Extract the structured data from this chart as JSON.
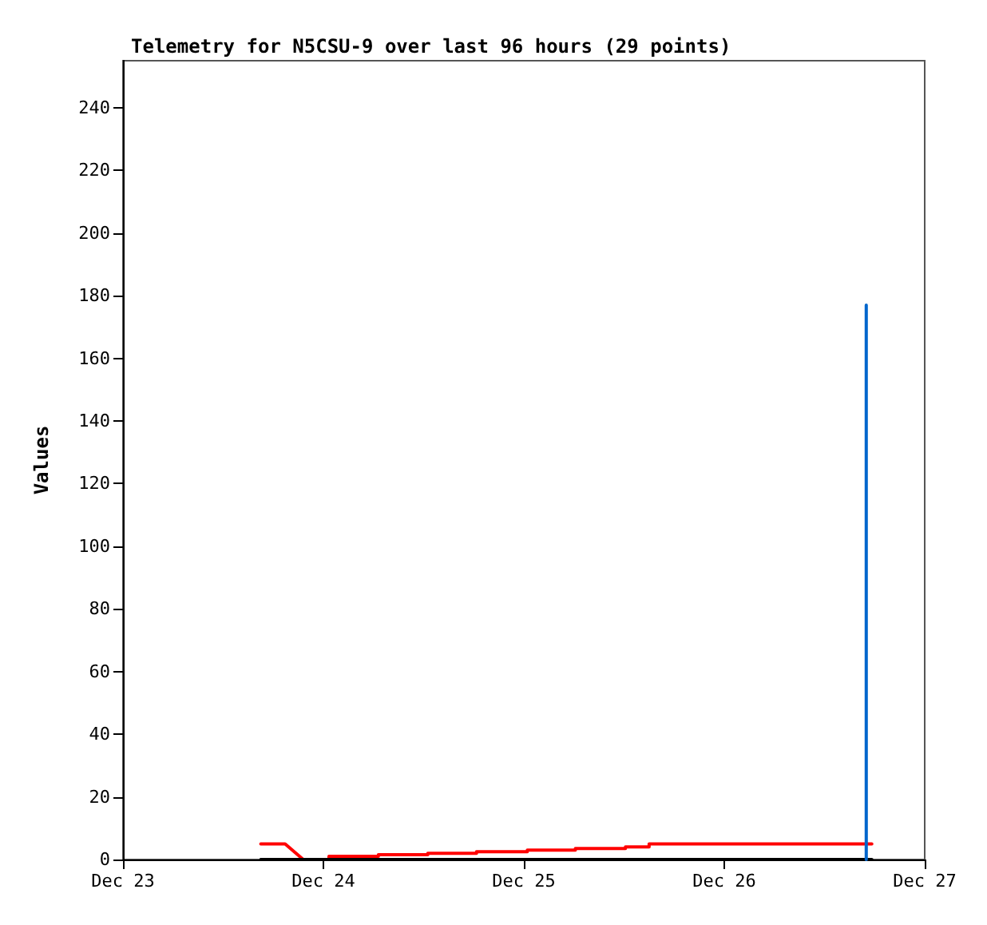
{
  "chart_data": {
    "type": "line",
    "title": "Telemetry for N5CSU-9 over last 96 hours (29 points)",
    "ylabel": "Values",
    "xlim": [
      "--12-23",
      "--12-27"
    ],
    "xticks": [
      {
        "value": "--12-23",
        "label": "Dec 23"
      },
      {
        "value": "--12-24",
        "label": "Dec 24"
      },
      {
        "value": "--12-25",
        "label": "Dec 25"
      },
      {
        "value": "--12-26",
        "label": "Dec 26"
      },
      {
        "value": "--12-27",
        "label": "Dec 27"
      }
    ],
    "ylim": [
      0,
      255
    ],
    "yticks": [
      0,
      20,
      40,
      60,
      80,
      100,
      120,
      140,
      160,
      180,
      200,
      220,
      240
    ],
    "grid": false,
    "marker": "none",
    "line_style": "solid",
    "series": [
      {
        "color": "#ff0000",
        "x": [
          "--12-23T16:30",
          "--12-23T19:25",
          "--12-23T21:35",
          "--12-24T00:40",
          "--12-24T00:40",
          "--12-24T06:35",
          "--12-24T06:35",
          "--12-24T12:30",
          "--12-24T12:30",
          "--12-24T18:20",
          "--12-24T18:20",
          "--12-25T00:25",
          "--12-25T00:25",
          "--12-25T06:10",
          "--12-25T06:10",
          "--12-25T12:10",
          "--12-25T12:10",
          "--12-25T15:00",
          "--12-25T15:00",
          "--12-26T17:40"
        ],
        "values": [
          5,
          5,
          0,
          0,
          1,
          1,
          1.5,
          1.5,
          2,
          2,
          2.5,
          2.5,
          3,
          3,
          3.5,
          3.5,
          4,
          4,
          5,
          5
        ]
      },
      {
        "color": "#000000",
        "x": [
          "--12-23T16:30",
          "--12-26T17:40"
        ],
        "values": [
          0,
          0
        ]
      },
      {
        "color": "#0066cc",
        "x": [
          "--12-26T17:00",
          "--12-26T17:00"
        ],
        "values": [
          0,
          177
        ]
      }
    ]
  }
}
